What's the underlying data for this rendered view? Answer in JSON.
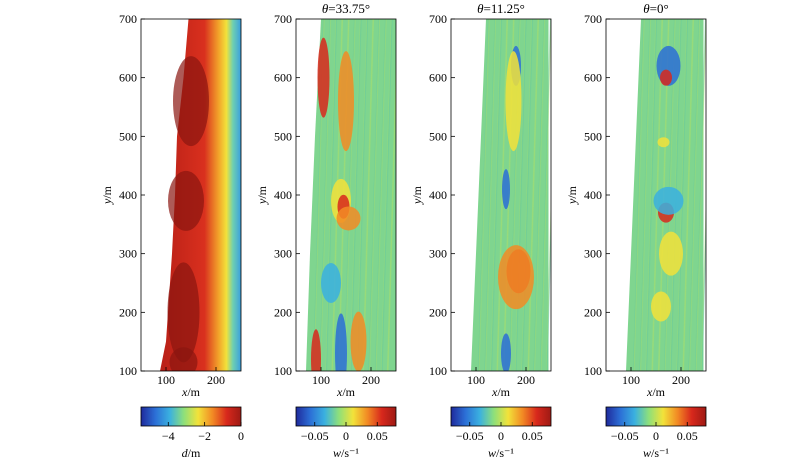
{
  "chart_data": [
    {
      "type": "heatmap",
      "title": "",
      "xlabel_italic": "x",
      "xlabel_unit": "/m",
      "ylabel_italic": "y",
      "ylabel_unit": "/m",
      "xticks": [
        "100",
        "200"
      ],
      "yticks": [
        "100",
        "200",
        "300",
        "400",
        "500",
        "600",
        "700"
      ],
      "xlim": [
        50,
        250
      ],
      "ylim": [
        100,
        700
      ],
      "colorbar": {
        "label_italic": "d",
        "label_unit": "/m",
        "range": [
          -5.5,
          0
        ],
        "ticks": [
          "−4",
          "−2",
          "0"
        ],
        "tick_values": [
          -4,
          -2,
          0
        ]
      }
    },
    {
      "type": "heatmap",
      "title_prefix": "θ",
      "title_value": "=33.75°",
      "xlabel_italic": "x",
      "xlabel_unit": "/m",
      "ylabel_italic": "y",
      "ylabel_unit": "/m",
      "xticks": [
        "100",
        "200"
      ],
      "yticks": [
        "100",
        "200",
        "300",
        "400",
        "500",
        "600",
        "700"
      ],
      "xlim": [
        50,
        250
      ],
      "ylim": [
        100,
        700
      ],
      "colorbar": {
        "label_italic": "w",
        "label_unit": "/s⁻¹",
        "range": [
          -0.08,
          0.08
        ],
        "ticks": [
          "−0.05",
          "0",
          "0.05"
        ],
        "tick_values": [
          -0.05,
          0,
          0.05
        ]
      }
    },
    {
      "type": "heatmap",
      "title_prefix": "θ",
      "title_value": "=11.25°",
      "xlabel_italic": "x",
      "xlabel_unit": "/m",
      "ylabel_italic": "y",
      "ylabel_unit": "/m",
      "xticks": [
        "100",
        "200"
      ],
      "yticks": [
        "100",
        "200",
        "300",
        "400",
        "500",
        "600",
        "700"
      ],
      "xlim": [
        50,
        250
      ],
      "ylim": [
        100,
        700
      ],
      "colorbar": {
        "label_italic": "w",
        "label_unit": "/s⁻¹",
        "range": [
          -0.08,
          0.08
        ],
        "ticks": [
          "−0.05",
          "0",
          "0.05"
        ],
        "tick_values": [
          -0.05,
          0,
          0.05
        ]
      }
    },
    {
      "type": "heatmap",
      "title_prefix": "θ",
      "title_value": "=0°",
      "xlabel_italic": "x",
      "xlabel_unit": "/m",
      "ylabel_italic": "y",
      "ylabel_unit": "/m",
      "xticks": [
        "100",
        "200"
      ],
      "yticks": [
        "100",
        "200",
        "300",
        "400",
        "500",
        "600",
        "700"
      ],
      "xlim": [
        50,
        250
      ],
      "ylim": [
        100,
        700
      ],
      "colorbar": {
        "label_italic": "w",
        "label_unit": "/s⁻¹",
        "range": [
          -0.08,
          0.08
        ],
        "ticks": [
          "−0.05",
          "0",
          "0.05"
        ],
        "tick_values": [
          -0.05,
          0,
          0.05
        ]
      }
    }
  ],
  "colormap": [
    "#1f2a9c",
    "#2c6fd6",
    "#3ab0e0",
    "#8ee07a",
    "#f2e23a",
    "#f28b24",
    "#d8281c",
    "#9e1a14"
  ]
}
